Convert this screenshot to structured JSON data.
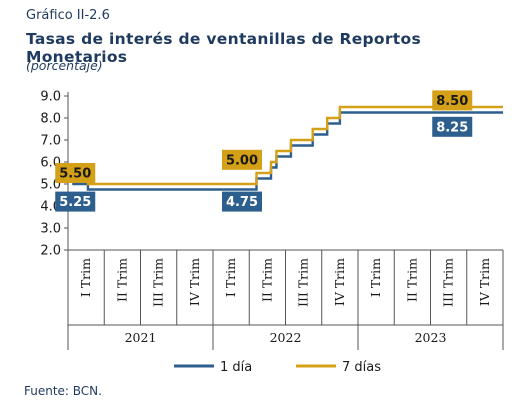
{
  "header": {
    "label": "Gráfico II-2.6",
    "title": "Tasas de interés de ventanillas de Reportos Monetarios",
    "subtitle": "(porcentaje)"
  },
  "footer": {
    "source": "Fuente: BCN."
  },
  "chart_data": {
    "type": "line",
    "y_ticks": [
      "9.0",
      "8.0",
      "7.0",
      "6.0",
      "5.0",
      "4.0",
      "3.0",
      "2.0"
    ],
    "ylim": [
      2.0,
      9.0
    ],
    "x_quarter_labels": [
      "I Trim",
      "II Trim",
      "III Trim",
      "IV Trim",
      "I Trim",
      "II Trim",
      "III Trim",
      "IV Trim",
      "I Trim",
      "II Trim",
      "III Trim",
      "IV Trim"
    ],
    "x_years": [
      "2021",
      "2022",
      "2023"
    ],
    "x_range_quarters": [
      0,
      12
    ],
    "grid": false,
    "legend_position": "bottom",
    "series": [
      {
        "name": "1 día",
        "color": "#2c5f8d",
        "points": [
          [
            0,
            5.25
          ],
          [
            0.15,
            5.25
          ],
          [
            0.15,
            5.0
          ],
          [
            0.55,
            5.0
          ],
          [
            0.55,
            4.75
          ],
          [
            5.2,
            4.75
          ],
          [
            5.2,
            5.25
          ],
          [
            5.6,
            5.25
          ],
          [
            5.6,
            5.75
          ],
          [
            5.75,
            5.75
          ],
          [
            5.75,
            6.25
          ],
          [
            6.15,
            6.25
          ],
          [
            6.15,
            6.75
          ],
          [
            6.75,
            6.75
          ],
          [
            6.75,
            7.25
          ],
          [
            7.15,
            7.25
          ],
          [
            7.15,
            7.75
          ],
          [
            7.5,
            7.75
          ],
          [
            7.5,
            8.25
          ],
          [
            12,
            8.25
          ]
        ]
      },
      {
        "name": "7 días",
        "color": "#d4a017",
        "points": [
          [
            0,
            5.5
          ],
          [
            0.15,
            5.5
          ],
          [
            0.15,
            5.25
          ],
          [
            0.55,
            5.25
          ],
          [
            0.55,
            5.0
          ],
          [
            5.2,
            5.0
          ],
          [
            5.2,
            5.5
          ],
          [
            5.6,
            5.5
          ],
          [
            5.6,
            6.0
          ],
          [
            5.75,
            6.0
          ],
          [
            5.75,
            6.5
          ],
          [
            6.15,
            6.5
          ],
          [
            6.15,
            7.0
          ],
          [
            6.75,
            7.0
          ],
          [
            6.75,
            7.5
          ],
          [
            7.15,
            7.5
          ],
          [
            7.15,
            8.0
          ],
          [
            7.5,
            8.0
          ],
          [
            7.5,
            8.5
          ],
          [
            12,
            8.5
          ]
        ]
      }
    ],
    "data_labels": [
      {
        "text": "5.50",
        "series": "7 días",
        "at": [
          0.2,
          5.5
        ]
      },
      {
        "text": "5.25",
        "series": "1 día",
        "at": [
          0.2,
          4.2
        ]
      },
      {
        "text": "5.00",
        "series": "7 días",
        "at": [
          4.8,
          6.1
        ]
      },
      {
        "text": "4.75",
        "series": "1 día",
        "at": [
          4.8,
          4.2
        ]
      },
      {
        "text": "8.50",
        "series": "7 días",
        "at": [
          10.6,
          8.8
        ]
      },
      {
        "text": "8.25",
        "series": "1 día",
        "at": [
          10.6,
          7.6
        ]
      }
    ]
  }
}
